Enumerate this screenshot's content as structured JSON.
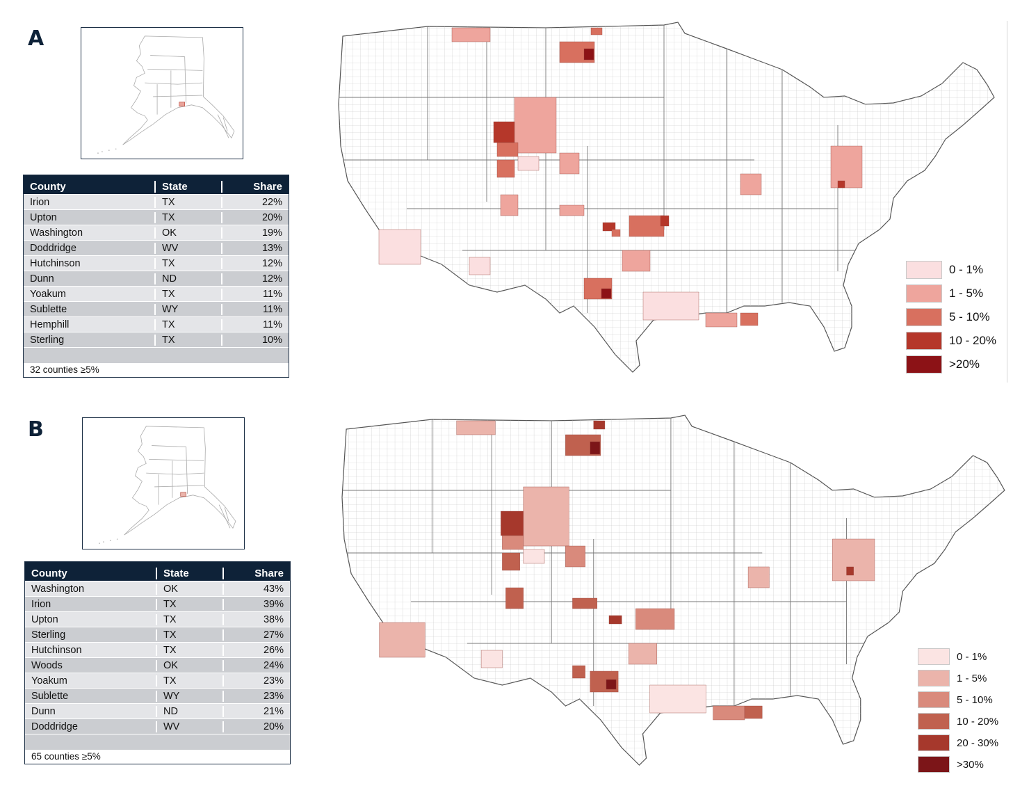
{
  "panels": [
    {
      "letter": "A",
      "table": {
        "headers": [
          "County",
          "State",
          "Share"
        ],
        "rows": [
          {
            "county": "Irion",
            "state": "TX",
            "share": "22%"
          },
          {
            "county": "Upton",
            "state": "TX",
            "share": "20%"
          },
          {
            "county": "Washington",
            "state": "OK",
            "share": "19%"
          },
          {
            "county": "Doddridge",
            "state": "WV",
            "share": "13%"
          },
          {
            "county": "Hutchinson",
            "state": "TX",
            "share": "12%"
          },
          {
            "county": "Dunn",
            "state": "ND",
            "share": "12%"
          },
          {
            "county": "Yoakum",
            "state": "TX",
            "share": "11%"
          },
          {
            "county": "Sublette",
            "state": "WY",
            "share": "11%"
          },
          {
            "county": "Hemphill",
            "state": "TX",
            "share": "11%"
          },
          {
            "county": "Sterling",
            "state": "TX",
            "share": "10%"
          }
        ],
        "footer": "32 counties ≥5%"
      },
      "legend": [
        {
          "label": "0 - 1%",
          "color": "#fbdfe0"
        },
        {
          "label": "1 - 5%",
          "color": "#eea59d"
        },
        {
          "label": "5 - 10%",
          "color": "#d8705f"
        },
        {
          "label": "10 - 20%",
          "color": "#b5372a"
        },
        {
          "label": ">20%",
          "color": "#8c1216"
        }
      ]
    },
    {
      "letter": "B",
      "table": {
        "headers": [
          "County",
          "State",
          "Share"
        ],
        "rows": [
          {
            "county": "Washington",
            "state": "OK",
            "share": "43%"
          },
          {
            "county": "Irion",
            "state": "TX",
            "share": "39%"
          },
          {
            "county": "Upton",
            "state": "TX",
            "share": "38%"
          },
          {
            "county": "Sterling",
            "state": "TX",
            "share": "27%"
          },
          {
            "county": "Hutchinson",
            "state": "TX",
            "share": "26%"
          },
          {
            "county": "Woods",
            "state": "OK",
            "share": "24%"
          },
          {
            "county": "Yoakum",
            "state": "TX",
            "share": "23%"
          },
          {
            "county": "Sublette",
            "state": "WY",
            "share": "23%"
          },
          {
            "county": "Dunn",
            "state": "ND",
            "share": "21%"
          },
          {
            "county": "Doddridge",
            "state": "WV",
            "share": "20%"
          }
        ],
        "footer": "65 counties ≥5%"
      },
      "legend": [
        {
          "label": "0 - 1%",
          "color": "#fbe4e3"
        },
        {
          "label": "1 - 5%",
          "color": "#ebb4ab"
        },
        {
          "label": "5 - 10%",
          "color": "#d98a7c"
        },
        {
          "label": "10 - 20%",
          "color": "#c0614f"
        },
        {
          "label": "20 - 30%",
          "color": "#a6382c"
        },
        {
          "label": ">30%",
          "color": "#7c1518"
        }
      ]
    }
  ]
}
